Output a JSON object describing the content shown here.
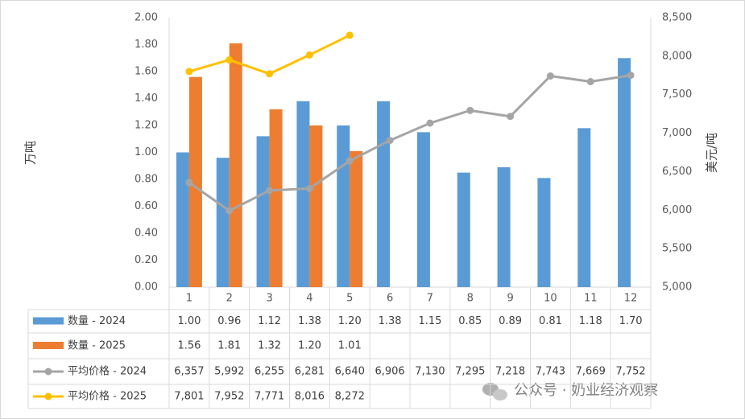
{
  "chart_data": {
    "type": "bar",
    "categories": [
      "1",
      "2",
      "3",
      "4",
      "5",
      "6",
      "7",
      "8",
      "9",
      "10",
      "11",
      "12"
    ],
    "series": [
      {
        "name": "数量 - 2024",
        "type": "bar",
        "axis": "y",
        "color": "#5b9bd5",
        "values": [
          1.0,
          0.96,
          1.12,
          1.38,
          1.2,
          1.38,
          1.15,
          0.85,
          0.89,
          0.81,
          1.18,
          1.7
        ],
        "value_labels": [
          "1.00",
          "0.96",
          "1.12",
          "1.38",
          "1.20",
          "1.38",
          "1.15",
          "0.85",
          "0.89",
          "0.81",
          "1.18",
          "1.70"
        ]
      },
      {
        "name": "数量 - 2025",
        "type": "bar",
        "axis": "y",
        "color": "#ed7d31",
        "values": [
          1.56,
          1.81,
          1.32,
          1.2,
          1.01,
          null,
          null,
          null,
          null,
          null,
          null,
          null
        ],
        "value_labels": [
          "1.56",
          "1.81",
          "1.32",
          "1.20",
          "1.01",
          null,
          null,
          null,
          null,
          null,
          null,
          null
        ]
      },
      {
        "name": "平均价格 - 2024",
        "type": "line",
        "axis": "y2",
        "color": "#a5a5a5",
        "values": [
          6357,
          5992,
          6255,
          6281,
          6640,
          6906,
          7130,
          7295,
          7218,
          7743,
          7669,
          7752
        ],
        "value_labels": [
          "6,357",
          "5,992",
          "6,255",
          "6,281",
          "6,640",
          "6,906",
          "7,130",
          "7,295",
          "7,218",
          "7,743",
          "7,669",
          "7,752"
        ]
      },
      {
        "name": "平均价格 - 2025",
        "type": "line",
        "axis": "y2",
        "color": "#ffc000",
        "values": [
          7801,
          7952,
          7771,
          8016,
          8272,
          null,
          null,
          null,
          null,
          null,
          null,
          null
        ],
        "value_labels": [
          "7,801",
          "7,952",
          "7,771",
          "8,016",
          "8,272",
          null,
          null,
          null,
          null,
          null,
          null,
          null
        ]
      }
    ],
    "ylabel": "万吨",
    "y2label": "美元/吨",
    "ylim": [
      0,
      2
    ],
    "yticks": [
      {
        "value": 0,
        "label": "0.00"
      },
      {
        "value": 0.2,
        "label": "0.20"
      },
      {
        "value": 0.4,
        "label": "0.40"
      },
      {
        "value": 0.6,
        "label": "0.60"
      },
      {
        "value": 0.8,
        "label": "0.80"
      },
      {
        "value": 1.0,
        "label": "1.00"
      },
      {
        "value": 1.2,
        "label": "1.20"
      },
      {
        "value": 1.4,
        "label": "1.40"
      },
      {
        "value": 1.6,
        "label": "1.60"
      },
      {
        "value": 1.8,
        "label": "1.80"
      },
      {
        "value": 2.0,
        "label": "2.00"
      }
    ],
    "y2lim": [
      5000,
      8500
    ],
    "y2ticks": [
      {
        "value": 5000,
        "label": "5,000"
      },
      {
        "value": 5500,
        "label": "5,500"
      },
      {
        "value": 6000,
        "label": "6,000"
      },
      {
        "value": 6500,
        "label": "6,500"
      },
      {
        "value": 7000,
        "label": "7,000"
      },
      {
        "value": 7500,
        "label": "7,500"
      },
      {
        "value": 8000,
        "label": "8,000"
      },
      {
        "value": 8500,
        "label": "8,500"
      }
    ],
    "grid": false,
    "watermark": "公众号 · 奶业经济观察"
  }
}
